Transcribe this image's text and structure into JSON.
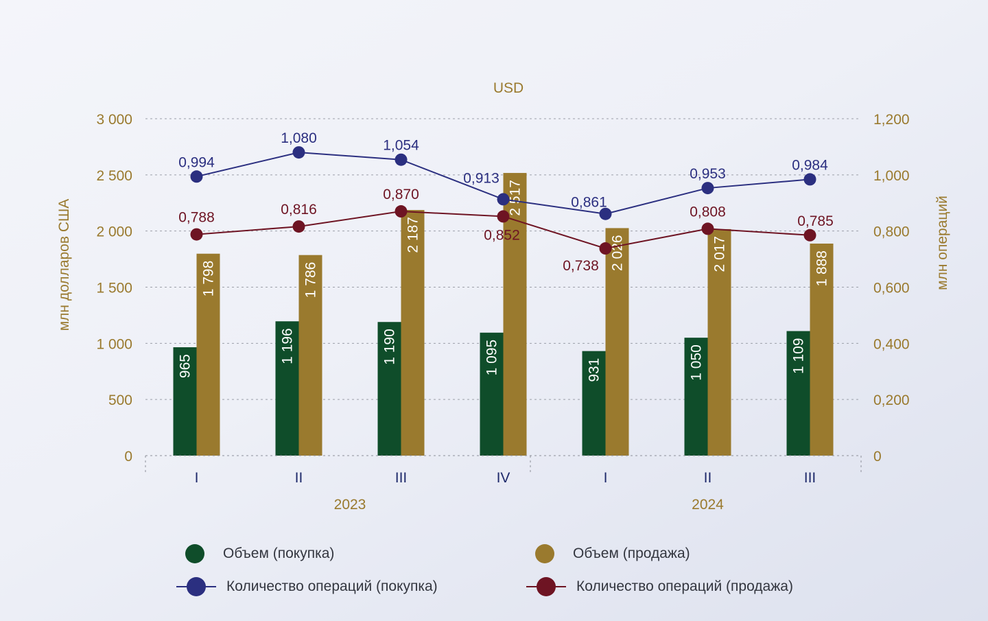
{
  "chart_data": {
    "type": "bar",
    "title": "USD",
    "ylabel_left": "млн долларов США",
    "ylabel_right": "млн операций",
    "categories": [
      "I",
      "II",
      "III",
      "IV",
      "I",
      "II",
      "III"
    ],
    "groups": [
      {
        "label": "2023",
        "span": [
          0,
          3
        ]
      },
      {
        "label": "2024",
        "span": [
          4,
          6
        ]
      }
    ],
    "ylim_left": [
      0,
      3000
    ],
    "yticks_left": [
      "0",
      "500",
      "1 000",
      "1 500",
      "2 000",
      "2 500",
      "3 000"
    ],
    "ylim_right": [
      0,
      1.2
    ],
    "yticks_right": [
      "0",
      "0,200",
      "0,400",
      "0,600",
      "0,800",
      "1,000",
      "1,200"
    ],
    "bar_series": [
      {
        "name": "Объем (покупка)",
        "color": "#0f4d2a",
        "values": [
          965,
          1196,
          1190,
          1095,
          931,
          1050,
          1109
        ],
        "labels": [
          "965",
          "1 196",
          "1 190",
          "1 095",
          "931",
          "1 050",
          "1 109"
        ]
      },
      {
        "name": "Объем (продажа)",
        "color": "#9a7a2e",
        "values": [
          1798,
          1786,
          2187,
          2517,
          2026,
          2017,
          1888
        ],
        "labels": [
          "1 798",
          "1 786",
          "2 187",
          "2 517",
          "2 026",
          "2 017",
          "1 888"
        ]
      }
    ],
    "line_series": [
      {
        "name": "Количество операций (покупка)",
        "color": "#2b2f80",
        "axis": "right",
        "values": [
          0.994,
          1.08,
          1.054,
          0.913,
          0.861,
          0.953,
          0.984
        ],
        "labels": [
          "0,994",
          "1,080",
          "1,054",
          "0,913",
          "0,861",
          "0,953",
          "0,984"
        ]
      },
      {
        "name": "Количество операций (продажа)",
        "color": "#6e1423",
        "axis": "right",
        "values": [
          0.788,
          0.816,
          0.87,
          0.852,
          0.738,
          0.808,
          0.785
        ],
        "labels": [
          "0,788",
          "0,816",
          "0,870",
          "0,852",
          "0,738",
          "0,808",
          "0,785"
        ]
      }
    ],
    "grid": true,
    "legend_position": "bottom"
  },
  "legend": {
    "buy_volume": "Объем (покупка)",
    "sell_volume": "Объем (продажа)",
    "buy_count": "Количество операций (покупка)",
    "sell_count": "Количество операций (продажа)"
  },
  "colors": {
    "buy_bar": "#0f4d2a",
    "sell_bar": "#9a7a2e",
    "buy_line": "#2b2f80",
    "sell_line": "#6e1423",
    "axis_text": "#9a7a2e",
    "category_text": "#1f2a6b"
  }
}
